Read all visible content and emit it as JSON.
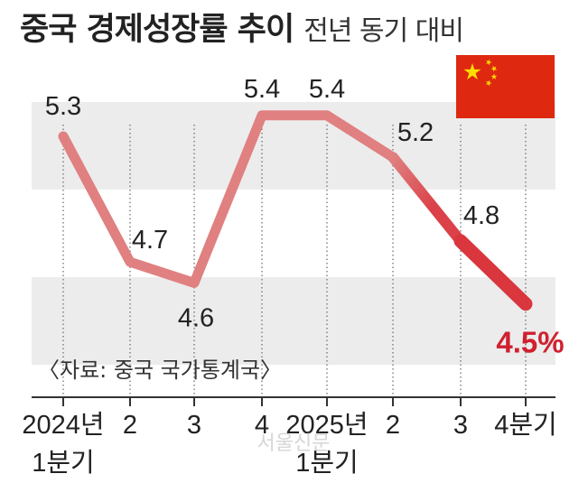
{
  "header": {
    "title": "중국 경제성장률 추이",
    "subtitle": "전년 동기 대비"
  },
  "source_note": "〈자료: 중국 국가통계국〉",
  "watermark": "서울신문",
  "colors": {
    "line": "#e08080",
    "highlight_line": "#d9363e",
    "last_label": "#d02030",
    "band": "#ececec",
    "flag_red": "#de2910",
    "flag_star": "#ffde00"
  },
  "chart_data": {
    "type": "line",
    "title": "중국 경제성장률 추이",
    "subtitle": "전년 동기 대비",
    "categories": [
      "2024년\n1분기",
      "2",
      "3",
      "4",
      "2025년\n1분기",
      "2",
      "3",
      "4분기"
    ],
    "values": [
      5.3,
      4.7,
      4.6,
      5.4,
      5.4,
      5.2,
      4.8,
      4.5
    ],
    "value_labels": [
      "5.3",
      "4.7",
      "4.6",
      "5.4",
      "5.4",
      "5.2",
      "4.8",
      "4.5%"
    ],
    "ylim": [
      4.2,
      5.7
    ],
    "grid": "alternating horizontal bands",
    "legend": "none",
    "highlight": "last segment from 3분기 to 4분기 in darker red"
  }
}
